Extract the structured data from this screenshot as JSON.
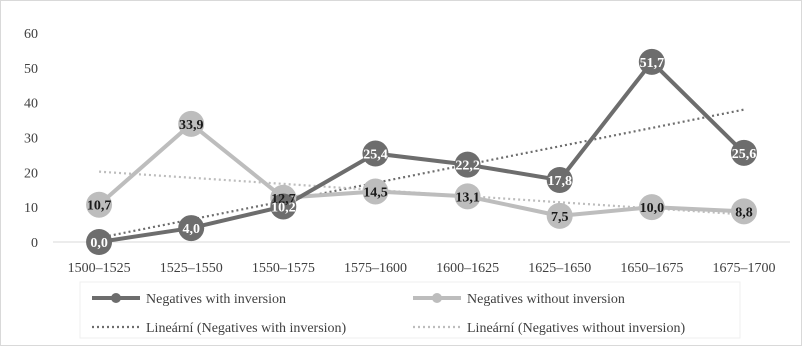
{
  "chart_data": {
    "type": "line",
    "title": "",
    "xlabel": "",
    "ylabel": "",
    "ylim": [
      0,
      60
    ],
    "yticks": [
      0,
      10,
      20,
      30,
      40,
      50,
      60
    ],
    "grid": false,
    "legend_position": "bottom",
    "categories": [
      "1500–1525",
      "1525–1550",
      "1550–1575",
      "1575–1600",
      "1600–1625",
      "1625–1650",
      "1650–1675",
      "1675–1700"
    ],
    "series": [
      {
        "name": "Negatives with inversion",
        "values": [
          0.0,
          4.0,
          10.2,
          25.4,
          22.2,
          17.8,
          51.7,
          25.6
        ],
        "labels": [
          "0,0",
          "4,0",
          "10,2",
          "25,4",
          "22,2",
          "17,8",
          "51,7",
          "25,6"
        ],
        "color": "#6d6d6d"
      },
      {
        "name": "Negatives without inversion",
        "values": [
          10.7,
          33.9,
          12.7,
          14.5,
          13.1,
          7.5,
          10.0,
          8.8
        ],
        "labels": [
          "10,7",
          "33,9",
          "12,7",
          "14,5",
          "13,1",
          "7,5",
          "10,0",
          "8,8"
        ],
        "color": "#bdbdbd"
      }
    ],
    "trendlines": [
      {
        "name": "Lineární (Negatives with inversion)",
        "start": 1.2,
        "end": 38.0,
        "color": "#6d6d6d",
        "style": "dotted"
      },
      {
        "name": "Lineární (Negatives without inversion)",
        "start": 20.2,
        "end": 7.9,
        "color": "#bdbdbd",
        "style": "dotted"
      }
    ]
  }
}
